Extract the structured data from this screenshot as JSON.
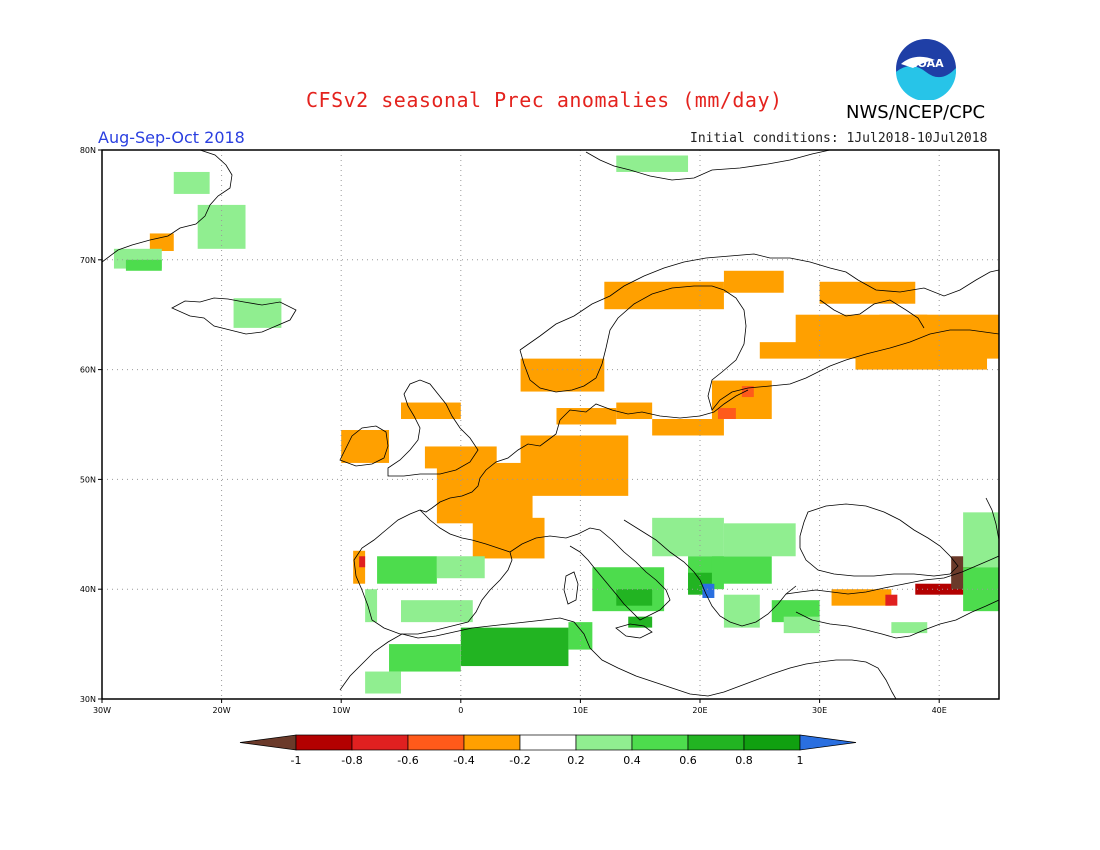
{
  "header": {
    "title": "CFSv2 seasonal Prec anomalies (mm/day)",
    "agency": "NWS/NCEP/CPC",
    "season": "Aug-Sep-Oct 2018",
    "initial_conditions": "Initial conditions: 1Jul2018-10Jul2018",
    "logo_text": "NOAA"
  },
  "colors": {
    "frame": "#000000",
    "grid": "#999999",
    "coast": "#000000",
    "title": "#e4231e",
    "season": "#2a3fe0"
  },
  "map": {
    "lon_range": [
      -30,
      45
    ],
    "lat_range": [
      30,
      80
    ],
    "lon_ticks": [
      "30W",
      "20W",
      "10W",
      "0",
      "10E",
      "20E",
      "30E",
      "40E"
    ],
    "lat_ticks": [
      "80N",
      "70N",
      "60N",
      "50N",
      "40N",
      "30N"
    ],
    "classes": [
      {
        "label": "< -1",
        "color": "#6b3a2a"
      },
      {
        "label": "-1 to -0.8",
        "color": "#b30000"
      },
      {
        "label": "-0.8 to -0.6",
        "color": "#e02020"
      },
      {
        "label": "-0.6 to -0.4",
        "color": "#ff5a1a"
      },
      {
        "label": "-0.4 to -0.2",
        "color": "#ffa000"
      },
      {
        "label": "-0.2 to 0.2",
        "color": "#ffffff"
      },
      {
        "label": "0.2 to 0.4",
        "color": "#90ee90"
      },
      {
        "label": "0.4 to 0.6",
        "color": "#4ddc4d"
      },
      {
        "label": "0.6 to 0.8",
        "color": "#22b422"
      },
      {
        "label": "0.8 to 1",
        "color": "#10a010"
      },
      {
        "label": "> 1",
        "color": "#2a6fe0"
      }
    ],
    "anomaly_regions": [
      {
        "class": 4,
        "lon": [
          -26,
          -24
        ],
        "lat": [
          70.8,
          72.4
        ]
      },
      {
        "class": 6,
        "lon": [
          -29,
          -25
        ],
        "lat": [
          69.2,
          71
        ]
      },
      {
        "class": 7,
        "lon": [
          -28,
          -25
        ],
        "lat": [
          69,
          70
        ]
      },
      {
        "class": 6,
        "lon": [
          -22,
          -18
        ],
        "lat": [
          71,
          75
        ]
      },
      {
        "class": 6,
        "lon": [
          -24,
          -21
        ],
        "lat": [
          76,
          78
        ]
      },
      {
        "class": 6,
        "lon": [
          -19,
          -15
        ],
        "lat": [
          63.8,
          66.5
        ]
      },
      {
        "class": 6,
        "lon": [
          13,
          19
        ],
        "lat": [
          78,
          79.5
        ]
      },
      {
        "class": 4,
        "lon": [
          -10,
          -6
        ],
        "lat": [
          51.5,
          54.5
        ]
      },
      {
        "class": 4,
        "lon": [
          -5,
          0
        ],
        "lat": [
          55.5,
          57
        ]
      },
      {
        "class": 4,
        "lon": [
          -3,
          3
        ],
        "lat": [
          51,
          53
        ]
      },
      {
        "class": 4,
        "lon": [
          -2,
          6
        ],
        "lat": [
          46,
          51.5
        ]
      },
      {
        "class": 4,
        "lon": [
          1,
          7
        ],
        "lat": [
          42.8,
          46.5
        ]
      },
      {
        "class": 4,
        "lon": [
          5,
          14
        ],
        "lat": [
          48.5,
          54
        ]
      },
      {
        "class": 4,
        "lon": [
          8,
          13
        ],
        "lat": [
          55,
          56.5
        ]
      },
      {
        "class": 4,
        "lon": [
          13,
          16
        ],
        "lat": [
          55.5,
          57
        ]
      },
      {
        "class": 4,
        "lon": [
          16,
          22
        ],
        "lat": [
          54,
          55.5
        ]
      },
      {
        "class": 4,
        "lon": [
          21,
          26
        ],
        "lat": [
          55.5,
          59
        ]
      },
      {
        "class": 3,
        "lon": [
          21.5,
          23
        ],
        "lat": [
          55.5,
          56.5
        ]
      },
      {
        "class": 3,
        "lon": [
          23.5,
          24.5
        ],
        "lat": [
          57.5,
          58.5
        ]
      },
      {
        "class": 4,
        "lon": [
          5,
          12
        ],
        "lat": [
          58,
          61
        ]
      },
      {
        "class": 4,
        "lon": [
          12,
          22
        ],
        "lat": [
          65.5,
          68
        ]
      },
      {
        "class": 4,
        "lon": [
          22,
          27
        ],
        "lat": [
          67,
          69
        ]
      },
      {
        "class": 4,
        "lon": [
          25,
          34
        ],
        "lat": [
          61,
          62.5
        ]
      },
      {
        "class": 4,
        "lon": [
          28,
          39
        ],
        "lat": [
          62,
          65
        ]
      },
      {
        "class": 4,
        "lon": [
          30,
          38
        ],
        "lat": [
          66,
          68
        ]
      },
      {
        "class": 4,
        "lon": [
          33,
          44
        ],
        "lat": [
          60,
          63.5
        ]
      },
      {
        "class": 4,
        "lon": [
          40,
          45
        ],
        "lat": [
          61,
          63.5
        ]
      },
      {
        "class": 4,
        "lon": [
          35,
          45
        ],
        "lat": [
          62,
          65
        ]
      },
      {
        "class": 4,
        "lon": [
          -9,
          -8
        ],
        "lat": [
          40.5,
          43.5
        ]
      },
      {
        "class": 2,
        "lon": [
          -8.5,
          -8
        ],
        "lat": [
          42,
          43
        ]
      },
      {
        "class": 4,
        "lon": [
          31,
          36
        ],
        "lat": [
          38.5,
          40
        ]
      },
      {
        "class": 2,
        "lon": [
          35.5,
          36.5
        ],
        "lat": [
          38.5,
          39.5
        ]
      },
      {
        "class": 1,
        "lon": [
          38,
          43
        ],
        "lat": [
          39.5,
          40.5
        ]
      },
      {
        "class": 0,
        "lon": [
          41,
          43
        ],
        "lat": [
          40,
          43
        ]
      },
      {
        "class": 2,
        "lon": [
          42,
          43
        ],
        "lat": [
          40.5,
          42
        ]
      },
      {
        "class": 7,
        "lon": [
          -7,
          -2
        ],
        "lat": [
          40.5,
          43
        ]
      },
      {
        "class": 6,
        "lon": [
          -2,
          2
        ],
        "lat": [
          41,
          43
        ]
      },
      {
        "class": 6,
        "lon": [
          -5,
          1
        ],
        "lat": [
          37,
          39
        ]
      },
      {
        "class": 6,
        "lon": [
          -8,
          -7
        ],
        "lat": [
          37,
          40
        ]
      },
      {
        "class": 8,
        "lon": [
          0,
          9
        ],
        "lat": [
          33,
          36.5
        ]
      },
      {
        "class": 7,
        "lon": [
          -6,
          0
        ],
        "lat": [
          32.5,
          35
        ]
      },
      {
        "class": 6,
        "lon": [
          -8,
          -5
        ],
        "lat": [
          30.5,
          32.5
        ]
      },
      {
        "class": 7,
        "lon": [
          9,
          11
        ],
        "lat": [
          34.5,
          37
        ]
      },
      {
        "class": 7,
        "lon": [
          11,
          17
        ],
        "lat": [
          38,
          42
        ]
      },
      {
        "class": 8,
        "lon": [
          13,
          16
        ],
        "lat": [
          38.5,
          40
        ]
      },
      {
        "class": 8,
        "lon": [
          14,
          16
        ],
        "lat": [
          36.5,
          37.5
        ]
      },
      {
        "class": 6,
        "lon": [
          16,
          22
        ],
        "lat": [
          43,
          46.5
        ]
      },
      {
        "class": 7,
        "lon": [
          19,
          22
        ],
        "lat": [
          40,
          43
        ]
      },
      {
        "class": 8,
        "lon": [
          19,
          21
        ],
        "lat": [
          39.5,
          41.5
        ]
      },
      {
        "class": 10,
        "lon": [
          20.2,
          21.2
        ],
        "lat": [
          39.2,
          40.5
        ]
      },
      {
        "class": 7,
        "lon": [
          21,
          26
        ],
        "lat": [
          40.5,
          43
        ]
      },
      {
        "class": 6,
        "lon": [
          22,
          28
        ],
        "lat": [
          43,
          46
        ]
      },
      {
        "class": 6,
        "lon": [
          22,
          25
        ],
        "lat": [
          36.5,
          39.5
        ]
      },
      {
        "class": 7,
        "lon": [
          26,
          30
        ],
        "lat": [
          37,
          39
        ]
      },
      {
        "class": 6,
        "lon": [
          27,
          30
        ],
        "lat": [
          36,
          37.5
        ]
      },
      {
        "class": 6,
        "lon": [
          36,
          39
        ],
        "lat": [
          36,
          37
        ]
      },
      {
        "class": 6,
        "lon": [
          42,
          45
        ],
        "lat": [
          42,
          47
        ]
      },
      {
        "class": 7,
        "lon": [
          42,
          45
        ],
        "lat": [
          38,
          42
        ]
      }
    ]
  },
  "colorbar": {
    "labels": [
      "-1",
      "-0.8",
      "-0.6",
      "-0.4",
      "-0.2",
      "0.2",
      "0.4",
      "0.6",
      "0.8",
      "1"
    ]
  }
}
